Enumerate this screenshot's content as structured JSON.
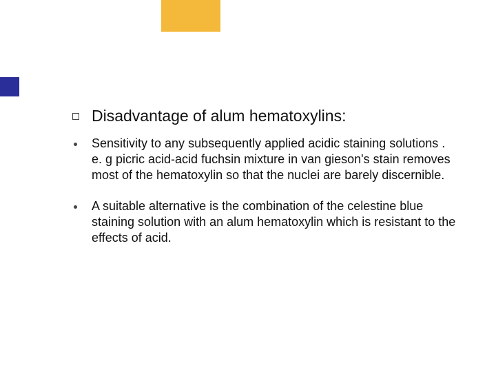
{
  "decor": {
    "yellow_bg": "#f4b93a",
    "blue_bg": "#2a2e98",
    "page_bg": "#ffffff"
  },
  "slide": {
    "title": "Disadvantage of alum hematoxylins:",
    "title_fontsize": 23,
    "body_fontsize": 18,
    "text_color": "#111111",
    "bullets": [
      "Sensitivity to any subsequently applied acidic staining solutions   . e. g picric acid-acid fuchsin mixture in van gieson's stain removes most of the hematoxylin so that the nuclei are barely discernible.",
      "A suitable alternative is the combination of the celestine blue staining solution with an alum hematoxylin which is resistant to the effects of acid."
    ]
  }
}
